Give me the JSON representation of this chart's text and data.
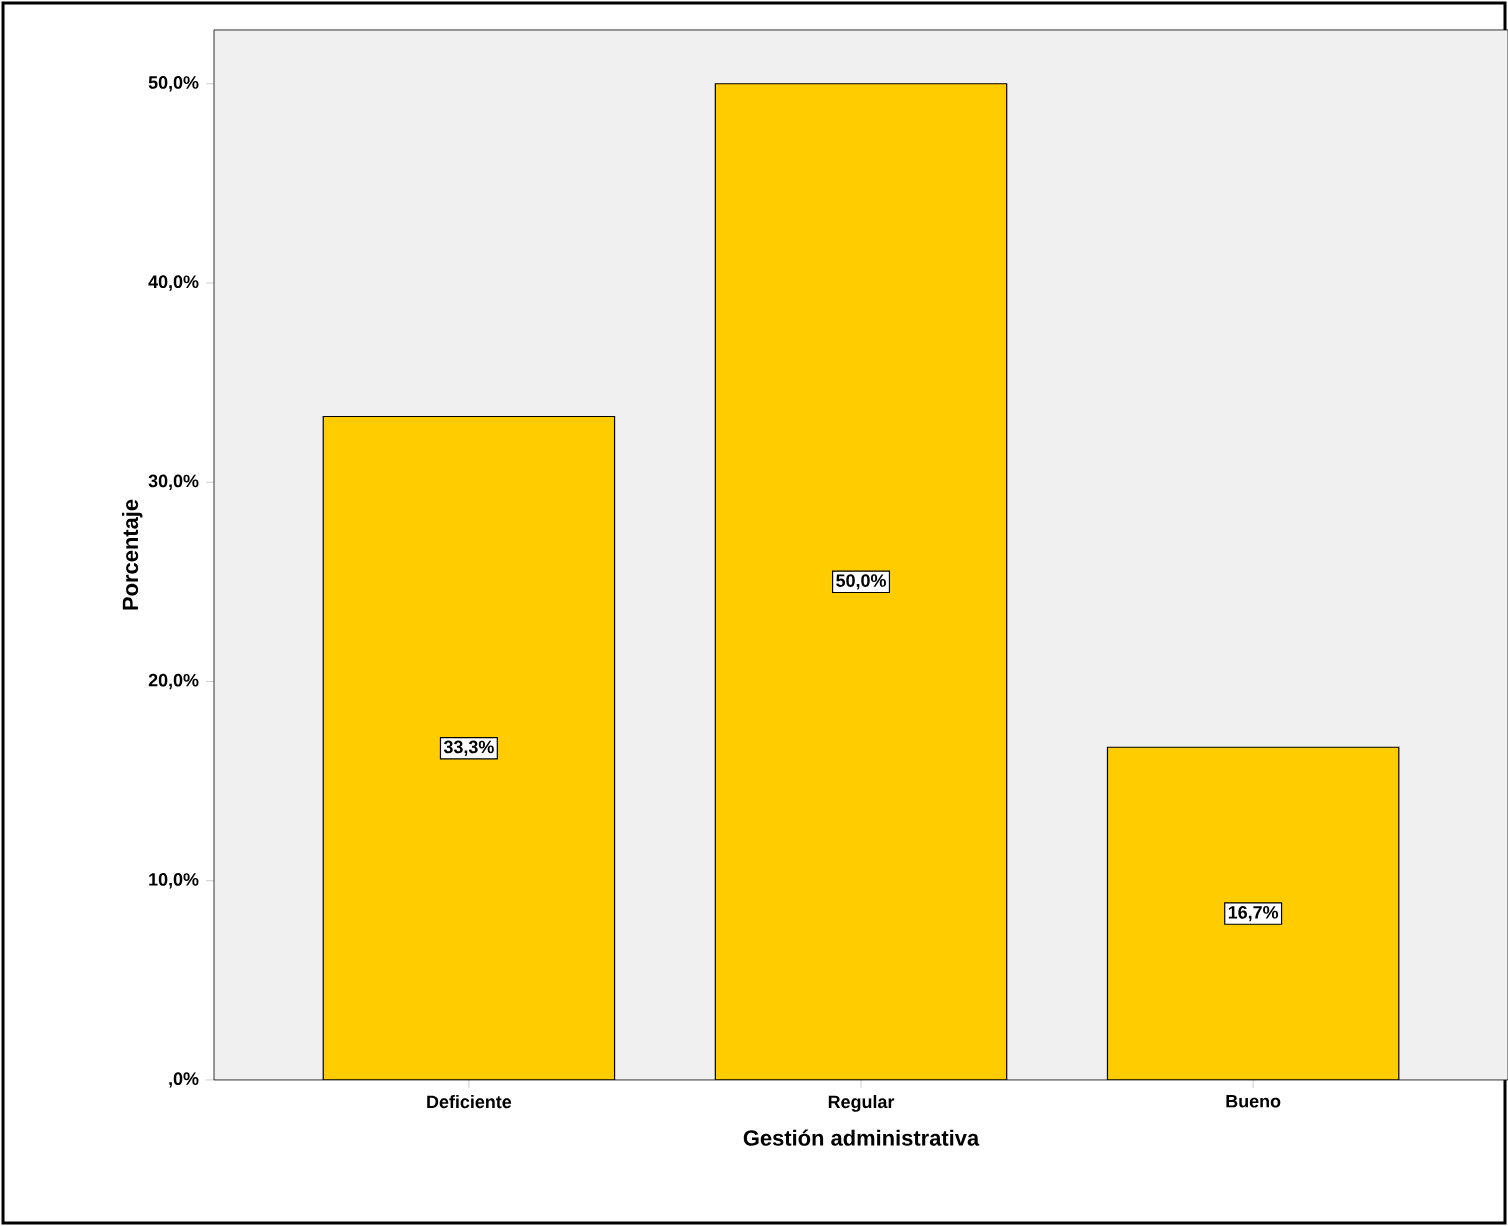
{
  "chart_data": {
    "type": "bar",
    "xlabel": "Gestión administrativa",
    "ylabel": "Porcentaje",
    "categories": [
      "Deficiente",
      "Regular",
      "Bueno"
    ],
    "values": [
      33.3,
      50.0,
      16.7
    ],
    "value_labels": [
      "33,3%",
      "50,0%",
      "16,7%"
    ],
    "color": "#ffcc00",
    "ylim": [
      0,
      52.7
    ],
    "yticks": [
      {
        "value": 0,
        "label": ",0%"
      },
      {
        "value": 10,
        "label": "10,0%"
      },
      {
        "value": 20,
        "label": "20,0%"
      },
      {
        "value": 30,
        "label": "30,0%"
      },
      {
        "value": 40,
        "label": "40,0%"
      },
      {
        "value": 50,
        "label": "50,0%"
      }
    ],
    "grid": false
  }
}
